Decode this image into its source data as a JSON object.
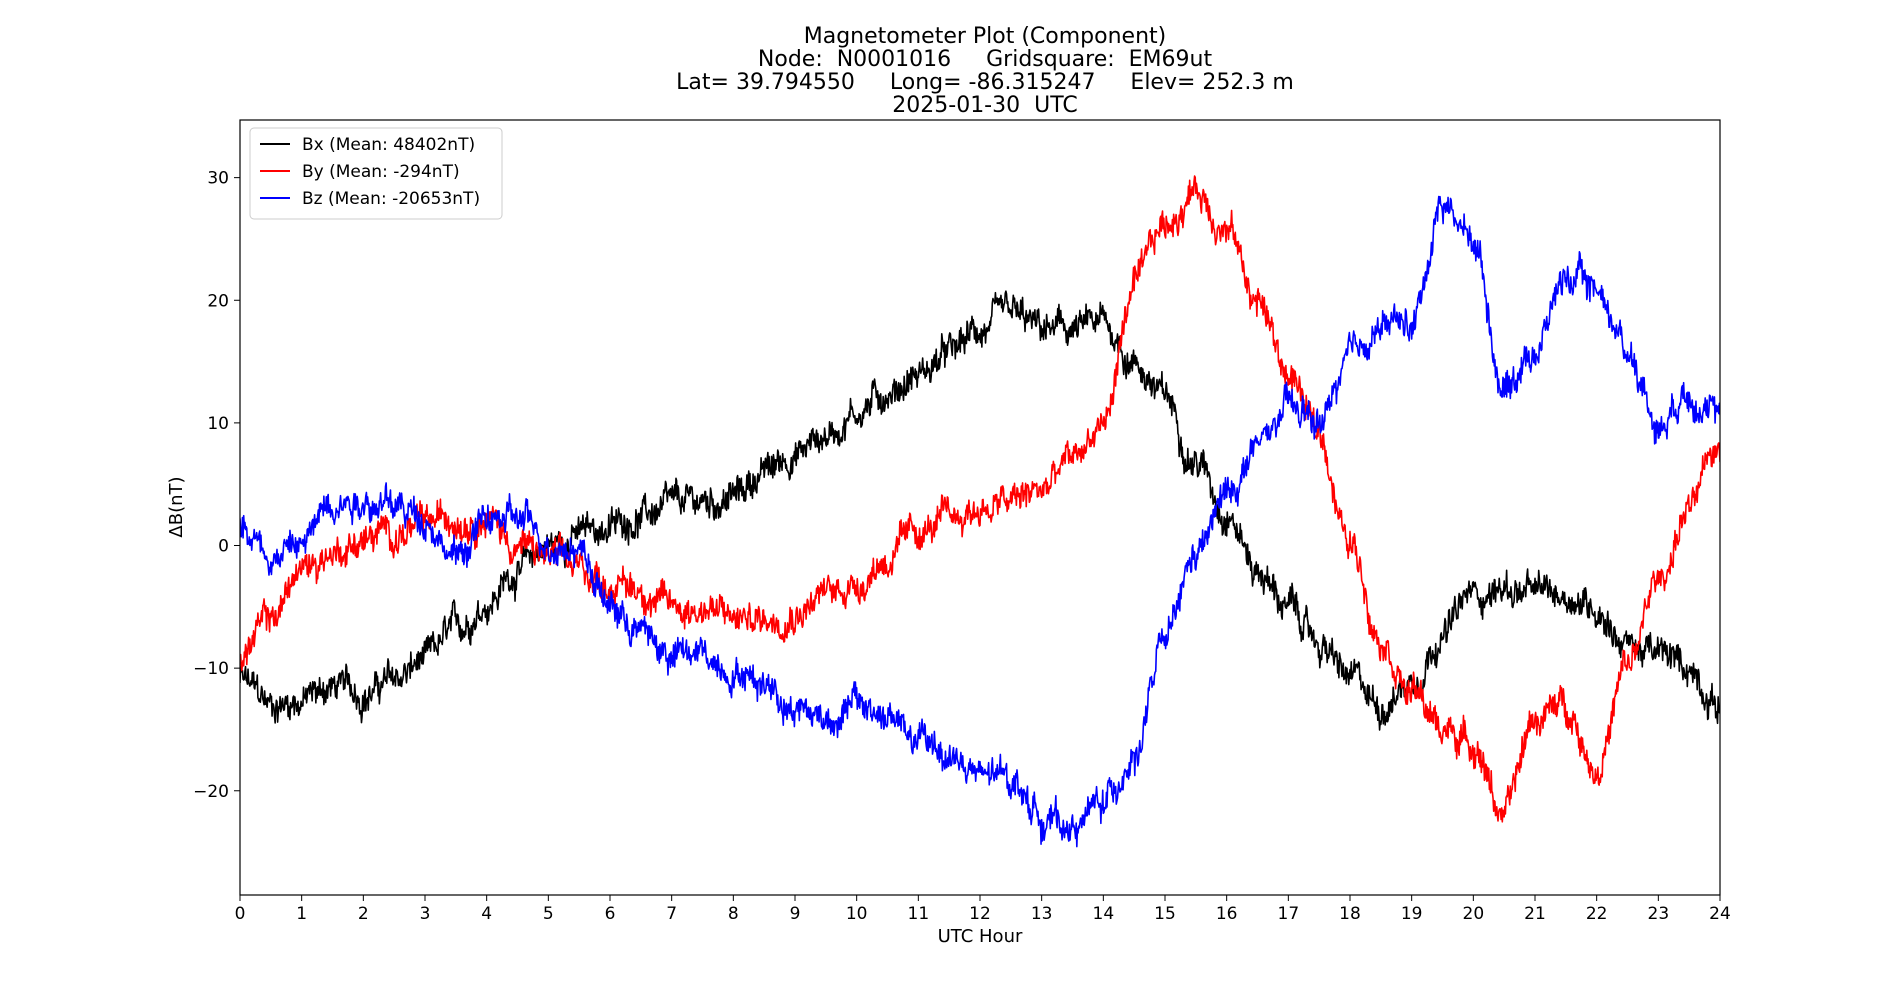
{
  "chart_data": {
    "type": "line",
    "title_lines": [
      "Magnetometer Plot (Component)",
      "Node:  N0001016     Gridsquare:  EM69ut",
      "Lat= 39.794550     Long= -86.315247     Elev= 252.3 m",
      "2025-01-30  UTC"
    ],
    "xlabel": "UTC Hour",
    "ylabel": "ΔB(nT)",
    "xlim": [
      0,
      24
    ],
    "ylim": [
      -28.5,
      34.7
    ],
    "xticks": [
      0,
      1,
      2,
      3,
      4,
      5,
      6,
      7,
      8,
      9,
      10,
      11,
      12,
      13,
      14,
      15,
      16,
      17,
      18,
      19,
      20,
      21,
      22,
      23,
      24
    ],
    "yticks": [
      -20,
      -10,
      0,
      10,
      20,
      30
    ],
    "ytick_labels": [
      "−20",
      "−10",
      "0",
      "10",
      "20",
      "30"
    ],
    "grid": false,
    "legend_location": "upper-left",
    "series": [
      {
        "name": "Bx",
        "label": "Bx (Mean: 48402nT)",
        "color": "#000000",
        "noise": 0.9,
        "x": [
          0,
          0.5,
          1,
          1.5,
          2,
          2.5,
          3,
          3.5,
          4,
          4.5,
          5,
          5.5,
          6,
          6.5,
          7,
          7.5,
          8,
          8.5,
          9,
          9.5,
          10,
          10.5,
          11,
          11.5,
          12,
          12.5,
          13,
          13.5,
          14,
          14.5,
          15,
          15.5,
          16,
          16.5,
          17,
          17.5,
          18,
          18.5,
          19,
          19.5,
          20,
          20.5,
          21,
          21.5,
          22,
          22.5,
          23,
          23.5,
          24
        ],
        "values": [
          -11,
          -13,
          -12.5,
          -11.5,
          -12,
          -11,
          -9.5,
          -7,
          -4.5,
          -2,
          0,
          1,
          1.5,
          2.5,
          3,
          3.5,
          4,
          6,
          7.5,
          9,
          11,
          12.5,
          14,
          15.5,
          17.5,
          18.5,
          17.5,
          17.5,
          18,
          15,
          12,
          7,
          3,
          -2,
          -5,
          -8,
          -11,
          -13,
          -11,
          -7,
          -4,
          -3.5,
          -4,
          -4,
          -5,
          -8,
          -9,
          -10,
          -13
        ]
      },
      {
        "name": "By",
        "label": "By (Mean: -294nT)",
        "color": "#ff0000",
        "noise": 0.9,
        "x": [
          0,
          0.5,
          1,
          1.5,
          2,
          2.5,
          3,
          3.5,
          4,
          4.5,
          5,
          5.5,
          6,
          6.5,
          7,
          7.5,
          8,
          8.5,
          9,
          9.5,
          10,
          10.5,
          11,
          11.5,
          12,
          12.5,
          13,
          13.5,
          14,
          14.5,
          15,
          15.5,
          16,
          16.5,
          17,
          17.5,
          18,
          18.5,
          19,
          19.5,
          20,
          20.5,
          21,
          21.5,
          22,
          22.5,
          23,
          23.5,
          24
        ],
        "values": [
          -9,
          -6,
          -2,
          -0.5,
          0.5,
          1,
          1.5,
          2.5,
          2.5,
          0,
          -1,
          -2,
          -3,
          -3.5,
          -5,
          -5,
          -6,
          -6,
          -5,
          -4,
          -3,
          -1,
          1,
          2,
          3,
          3.5,
          4.5,
          7,
          10,
          21,
          26,
          29,
          26,
          20,
          14,
          9,
          0,
          -7,
          -12,
          -15,
          -16,
          -22,
          -14,
          -13,
          -18,
          -10,
          -3,
          3,
          8
        ]
      },
      {
        "name": "Bz",
        "label": "Bz (Mean: -20653nT)",
        "color": "#0000ff",
        "noise": 0.9,
        "x": [
          0,
          0.5,
          1,
          1.5,
          2,
          2.5,
          3,
          3.5,
          4,
          4.5,
          5,
          5.5,
          6,
          6.5,
          7,
          7.5,
          8,
          8.5,
          9,
          9.5,
          10,
          10.5,
          11,
          11.5,
          12,
          12.5,
          13,
          13.5,
          14,
          14.5,
          15,
          15.5,
          16,
          16.5,
          17,
          17.5,
          18,
          18.5,
          19,
          19.5,
          20,
          20.5,
          21,
          21.5,
          22,
          22.5,
          23,
          23.5,
          24
        ],
        "values": [
          2,
          -0.5,
          0,
          4,
          4,
          3,
          2.5,
          -1,
          2,
          2,
          0.5,
          0,
          -5,
          -7,
          -9,
          -9,
          -10,
          -11,
          -13,
          -14,
          -13,
          -14,
          -16,
          -17,
          -19,
          -19,
          -22,
          -23,
          -21,
          -17,
          -8,
          -1,
          4,
          8,
          11,
          10,
          15,
          18,
          18,
          28,
          25,
          13,
          16,
          22,
          21,
          16,
          10,
          13,
          10
        ]
      }
    ]
  }
}
